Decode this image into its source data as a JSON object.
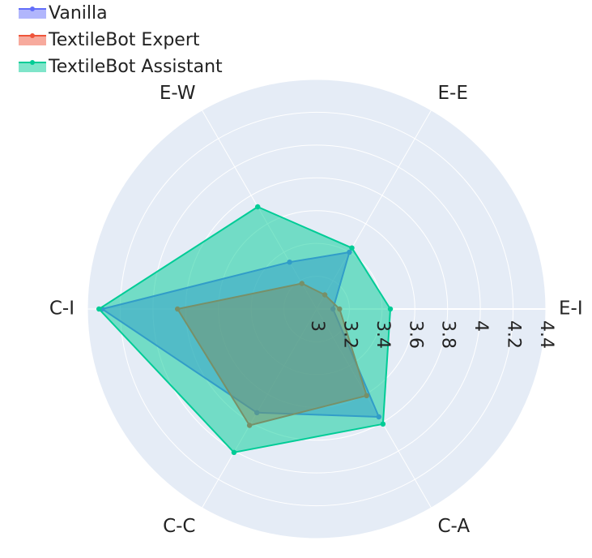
{
  "chart_data": {
    "type": "radar",
    "categories": [
      "E-I",
      "E-E",
      "E-W",
      "C-I",
      "C-C",
      "C-A"
    ],
    "radial_range": [
      3.0,
      4.4
    ],
    "radial_ticks": [
      "3",
      "3.2",
      "3.4",
      "3.6",
      "3.8",
      "4",
      "4.2",
      "4.4"
    ],
    "radial_tick_values": [
      3.0,
      3.2,
      3.4,
      3.6,
      3.8,
      4.0,
      4.2,
      4.4
    ],
    "legend_position": "top-left",
    "series": [
      {
        "name": "Vanilla",
        "color": "#636efa",
        "fill": "#636efa",
        "values": [
          3.1,
          3.4,
          3.33,
          4.31,
          3.73,
          3.76
        ]
      },
      {
        "name": "TextileBot Expert",
        "color": "#ef553b",
        "fill": "#ef553b",
        "values": [
          3.14,
          3.1,
          3.18,
          3.85,
          3.82,
          3.61
        ]
      },
      {
        "name": "TextileBot Assistant",
        "color": "#00cc96",
        "fill": "#00cc96",
        "values": [
          3.45,
          3.43,
          3.72,
          4.33,
          4.01,
          3.81
        ]
      }
    ]
  }
}
